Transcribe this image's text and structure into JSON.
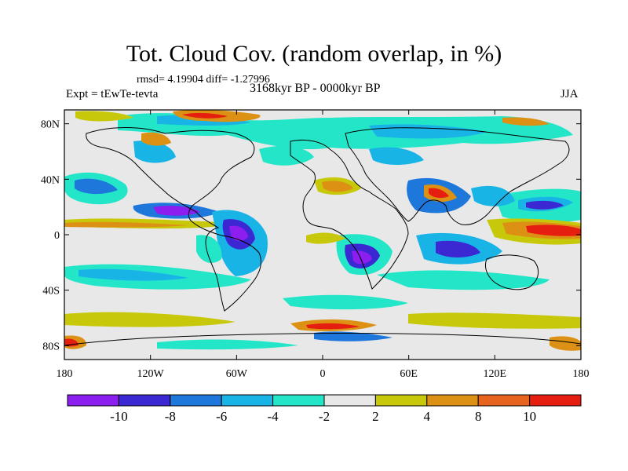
{
  "header": {
    "title": "Tot. Cloud Cov. (random overlap, in %)",
    "stats": "rmsd= 4.19904 diff= -1.27996",
    "experiment": "Expt = tEwTe-tevta",
    "period": "3168kyr BP - 0000kyr BP",
    "season": "JJA"
  },
  "map": {
    "projection": "cylindrical equidistant",
    "lon_range": [
      -180,
      180
    ],
    "lat_range": [
      -90,
      90
    ],
    "lon_ticks": [
      {
        "value": -180,
        "label": "180"
      },
      {
        "value": -120,
        "label": "120W"
      },
      {
        "value": -60,
        "label": "60W"
      },
      {
        "value": 0,
        "label": "0"
      },
      {
        "value": 60,
        "label": "60E"
      },
      {
        "value": 120,
        "label": "120E"
      },
      {
        "value": 180,
        "label": "180"
      }
    ],
    "lat_ticks": [
      {
        "value": 80,
        "label": "80N"
      },
      {
        "value": 40,
        "label": "40N"
      },
      {
        "value": 0,
        "label": "0"
      },
      {
        "value": -40,
        "label": "40S"
      },
      {
        "value": -80,
        "label": "80S"
      }
    ],
    "background_color": "#e8e8e8",
    "coastline_color": "#000000"
  },
  "colorbar": {
    "levels": [
      "-10",
      "-8",
      "-6",
      "-4",
      "-2",
      "2",
      "4",
      "8",
      "10"
    ],
    "colors": [
      "#8c1ef0",
      "#3c28d2",
      "#1e78dc",
      "#19b4e6",
      "#23e6c8",
      "#e8e8e8",
      "#c8c80a",
      "#dc9114",
      "#e6641e",
      "#e61e0f"
    ]
  }
}
